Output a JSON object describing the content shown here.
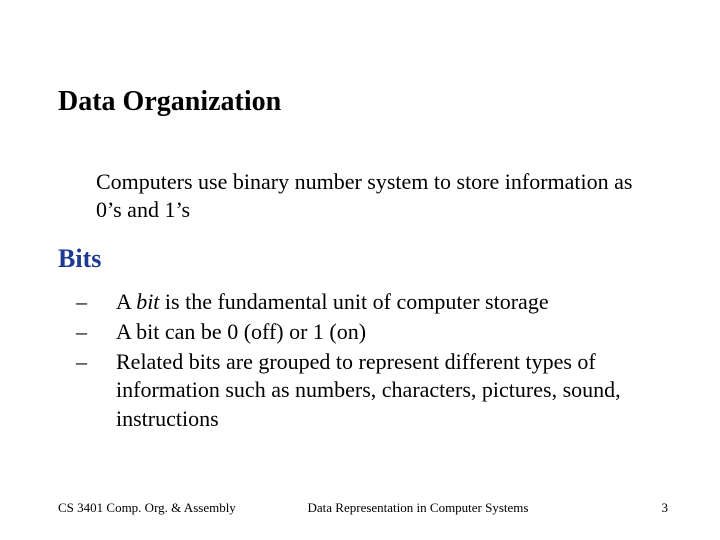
{
  "colors": {
    "background": "#ffffff",
    "text": "#000000",
    "heading_accent": "#1e3a93"
  },
  "typography": {
    "family": "Times New Roman",
    "title_fontsize": 28,
    "body_fontsize": 22,
    "section_fontsize": 26,
    "footer_fontsize": 13
  },
  "title": "Data Organization",
  "intro": "Computers use binary number system to store information as 0’s and 1’s",
  "section_heading": "Bits",
  "bullets": [
    {
      "dash": "– ",
      "prefix": "A ",
      "italic": "bit",
      "suffix": " is the fundamental unit of computer storage"
    },
    {
      "dash": "– ",
      "prefix": "A bit can be 0 (off) or 1 (on)",
      "italic": "",
      "suffix": ""
    },
    {
      "dash": "– ",
      "prefix": "Related bits are grouped to represent different types of information such as numbers, characters, pictures, sound, instructions",
      "italic": "",
      "suffix": ""
    }
  ],
  "footer": {
    "left": "CS 3401 Comp. Org. & Assembly",
    "center": "Data Representation in Computer Systems",
    "page": "3"
  }
}
